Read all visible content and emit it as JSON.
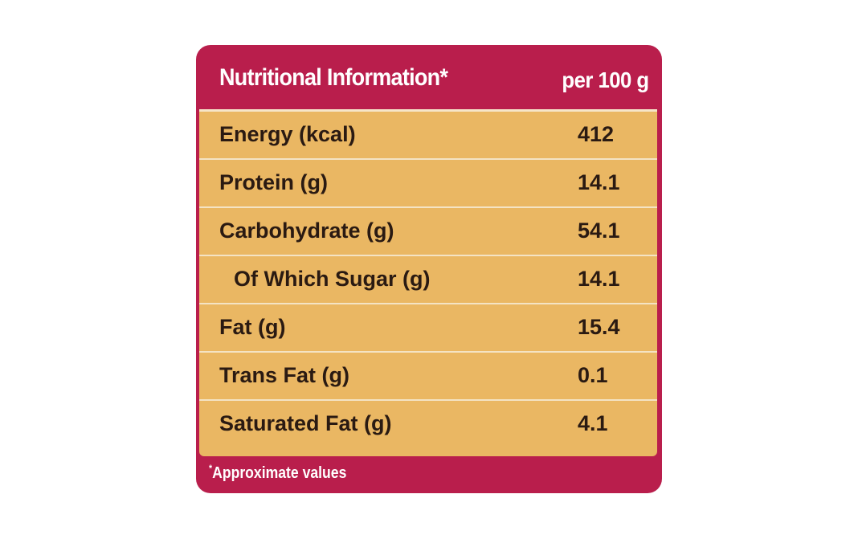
{
  "header": {
    "title": "Nutritional Information*",
    "per": "per 100 g"
  },
  "rows": [
    {
      "label": "Energy (kcal)",
      "value": "412"
    },
    {
      "label": "Protein (g)",
      "value": "14.1"
    },
    {
      "label": "Carbohydrate (g)",
      "value": "54.1"
    },
    {
      "label": "Of Which Sugar (g)",
      "value": "14.1"
    },
    {
      "label": "Fat (g)",
      "value": "15.4"
    },
    {
      "label": "Trans Fat (g)",
      "value": "0.1"
    },
    {
      "label": "Saturated Fat (g)",
      "value": "4.1"
    }
  ],
  "footnote": {
    "marker": "*",
    "text": "Approximate values"
  },
  "colors": {
    "frame": "#b91e4c",
    "table_fill": "#eab763",
    "text_dark": "#2a1a12",
    "divider": "#f4e3c4"
  }
}
